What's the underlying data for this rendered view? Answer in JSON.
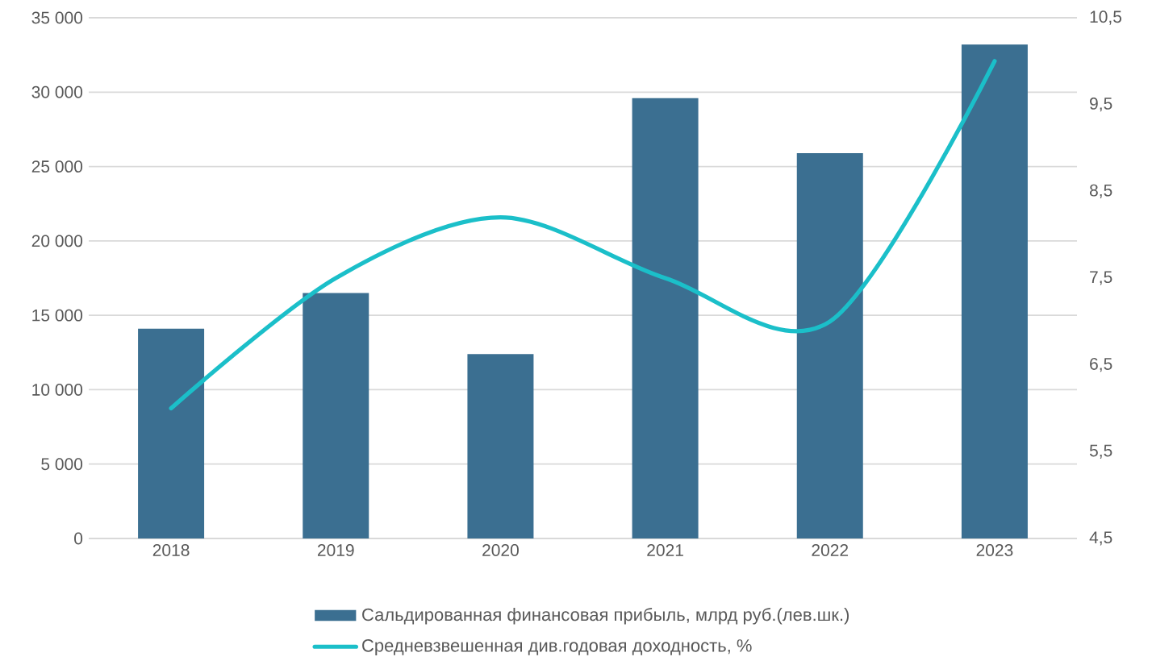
{
  "chart_data": {
    "type": "bar",
    "categories": [
      "2018",
      "2019",
      "2020",
      "2021",
      "2022",
      "2023"
    ],
    "series": [
      {
        "name": "Сальдированная финансовая прибыль, млрд руб.(лев.шк.)",
        "color": "#3b6f91",
        "values": [
          14100,
          16500,
          12400,
          29600,
          25900,
          33200
        ]
      },
      {
        "name": "Средневзвешенная  див.годовая доходность, %",
        "type": "line",
        "axis": "y2",
        "color": "#1bbfc9",
        "line_style": "solid",
        "values": [
          6.0,
          7.5,
          8.2,
          7.5,
          7.0,
          10.0
        ]
      }
    ],
    "ylim": [
      0,
      35000
    ],
    "yticks": [
      0,
      {
        "value": 5000,
        "label": "5 000"
      },
      {
        "value": 10000,
        "label": "10 000"
      },
      {
        "value": 15000,
        "label": "15 000"
      },
      {
        "value": 20000,
        "label": "20 000"
      },
      {
        "value": 25000,
        "label": "25 000"
      },
      {
        "value": 30000,
        "label": "30 000"
      },
      {
        "value": 35000,
        "label": "35 000"
      }
    ],
    "y2lim": [
      4.5,
      10.5
    ],
    "y2ticks": [
      {
        "value": 4.5,
        "label": "4,5"
      },
      {
        "value": 5.5,
        "label": "5,5"
      },
      {
        "value": 6.5,
        "label": "6,5"
      },
      {
        "value": 7.5,
        "label": "7,5"
      },
      {
        "value": 8.5,
        "label": "8,5"
      },
      {
        "value": 9.5,
        "label": "9,5"
      },
      {
        "value": 10.5,
        "label": "10,5"
      }
    ],
    "grid": "y",
    "legend": "bottom",
    "marker": "none"
  }
}
